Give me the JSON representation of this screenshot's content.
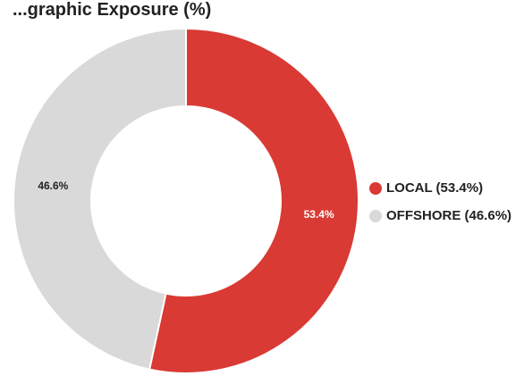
{
  "chart_data": {
    "type": "pie",
    "title": "...graphic Exposure (%)",
    "slices": [
      {
        "name": "LOCAL",
        "value": 53.4,
        "value_label": "53.4%",
        "legend_label": "LOCAL (53.4%)",
        "color": "#d93a34",
        "label_color": "#ffffff"
      },
      {
        "name": "OFFSHORE",
        "value": 46.6,
        "value_label": "46.6%",
        "legend_label": "OFFSHORE (46.6%)",
        "color": "#d9d9d9",
        "label_color": "#222222"
      }
    ],
    "donut": true,
    "start": "top",
    "direction": "clockwise",
    "legend_position": "right"
  }
}
